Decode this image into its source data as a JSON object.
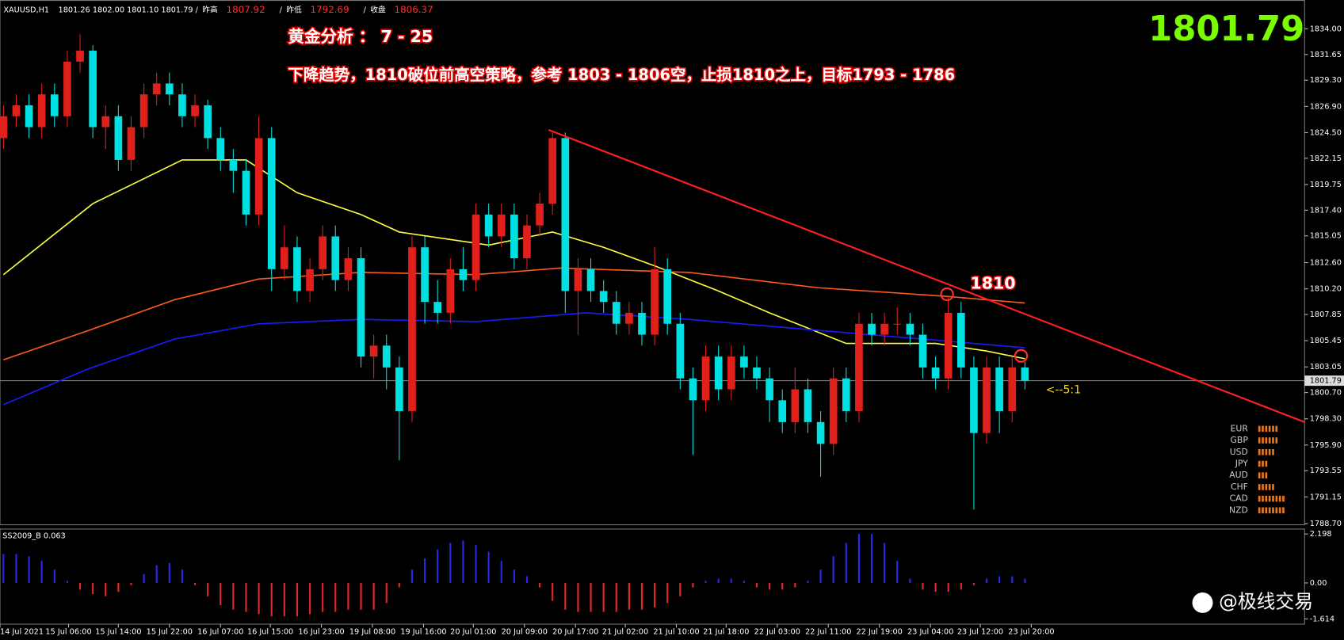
{
  "chart_data": {
    "type": "candlestick",
    "symbol": "XAUUSD,H1",
    "ohlc_text": "1801.26 1802.00 1801.10 1801.79",
    "stats": [
      {
        "label": "昨高",
        "value": 1807.92
      },
      {
        "label": "昨低",
        "value": 1792.69
      },
      {
        "label": "收盘",
        "value": 1806.37
      }
    ],
    "last_price": 1801.79,
    "annotations": [
      "黄金分析 ：  7 - 25",
      "下降趋势，1810破位前高空策略，参考 1803 - 1806空，止损1810之上，目标1793 - 1786"
    ],
    "level_label": "1810",
    "ratio_label": "<--5:1",
    "up_color": "#e0201a",
    "down_color": "#00e0e0",
    "xlim": [
      -0.27,
      101.9
    ],
    "ylim": [
      1788.6,
      1836.6
    ],
    "yticks": [
      {
        "value": 1834.0,
        "label": "1834.00"
      },
      {
        "value": 1831.65,
        "label": "1831.65"
      },
      {
        "value": 1829.3,
        "label": "1829.30"
      },
      {
        "value": 1826.9,
        "label": "1826.90"
      },
      {
        "value": 1824.5,
        "label": "1824.50"
      },
      {
        "value": 1822.15,
        "label": "1822.15"
      },
      {
        "value": 1819.75,
        "label": "1819.75"
      },
      {
        "value": 1817.4,
        "label": "1817.40"
      },
      {
        "value": 1815.05,
        "label": "1815.05"
      },
      {
        "value": 1812.6,
        "label": "1812.60"
      },
      {
        "value": 1810.2,
        "label": "1810.20"
      },
      {
        "value": 1807.85,
        "label": "1807.85"
      },
      {
        "value": 1805.45,
        "label": "1805.45"
      },
      {
        "value": 1803.05,
        "label": "1803.05"
      },
      {
        "value": 1800.7,
        "label": "1800.70"
      },
      {
        "value": 1798.3,
        "label": "1798.30"
      },
      {
        "value": 1795.9,
        "label": "1795.90"
      },
      {
        "value": 1793.55,
        "label": "1793.55"
      },
      {
        "value": 1791.15,
        "label": "1791.15"
      },
      {
        "value": 1788.7,
        "label": "1788.70"
      }
    ],
    "xticks": [
      {
        "value": -0.27,
        "label": "14 Jul 2021"
      },
      {
        "value": 5.1,
        "label": "15 Jul 06:00"
      },
      {
        "value": 9,
        "label": "15 Jul 14:00"
      },
      {
        "value": 13,
        "label": "15 Jul 22:00"
      },
      {
        "value": 17,
        "label": "16 Jul 07:00"
      },
      {
        "value": 20.9,
        "label": "16 Jul 15:00"
      },
      {
        "value": 24.9,
        "label": "16 Jul 23:00"
      },
      {
        "value": 28.9,
        "label": "19 Jul 08:00"
      },
      {
        "value": 32.9,
        "label": "19 Jul 16:00"
      },
      {
        "value": 36.8,
        "label": "20 Jul 01:00"
      },
      {
        "value": 40.8,
        "label": "20 Jul 09:00"
      },
      {
        "value": 44.8,
        "label": "20 Jul 17:00"
      },
      {
        "value": 48.7,
        "label": "21 Jul 02:00"
      },
      {
        "value": 52.7,
        "label": "21 Jul 10:00"
      },
      {
        "value": 56.6,
        "label": "21 Jul 18:00"
      },
      {
        "value": 60.6,
        "label": "22 Jul 03:00"
      },
      {
        "value": 64.6,
        "label": "22 Jul 11:00"
      },
      {
        "value": 68.6,
        "label": "22 Jul 19:00"
      },
      {
        "value": 72.6,
        "label": "23 Jul 04:00"
      },
      {
        "value": 76.5,
        "label": "23 Jul 12:00"
      },
      {
        "value": 80.5,
        "label": "23 Jul 20:00"
      }
    ],
    "candles": [
      [
        1824,
        1827,
        1823,
        1826
      ],
      [
        1826,
        1828,
        1825,
        1827
      ],
      [
        1827,
        1828,
        1824,
        1825
      ],
      [
        1825,
        1829,
        1824,
        1828
      ],
      [
        1828,
        1829,
        1825,
        1826
      ],
      [
        1826,
        1832,
        1825,
        1831
      ],
      [
        1831,
        1833.5,
        1830,
        1832
      ],
      [
        1832,
        1832.5,
        1824,
        1825
      ],
      [
        1825,
        1827,
        1823,
        1826
      ],
      [
        1826,
        1827,
        1821,
        1822
      ],
      [
        1822,
        1826,
        1821,
        1825
      ],
      [
        1825,
        1829,
        1824,
        1828
      ],
      [
        1828,
        1830,
        1827,
        1829
      ],
      [
        1829,
        1830,
        1827,
        1828
      ],
      [
        1828,
        1829,
        1825,
        1826
      ],
      [
        1826,
        1828,
        1825,
        1827
      ],
      [
        1827,
        1827.5,
        1823,
        1824
      ],
      [
        1824,
        1825,
        1821,
        1822
      ],
      [
        1822,
        1823,
        1819,
        1821
      ],
      [
        1821,
        1822,
        1816,
        1817
      ],
      [
        1817,
        1826,
        1816,
        1824
      ],
      [
        1824,
        1825,
        1810,
        1812
      ],
      [
        1812,
        1816,
        1811,
        1814
      ],
      [
        1814,
        1815,
        1809,
        1810
      ],
      [
        1810,
        1813,
        1809,
        1812
      ],
      [
        1812,
        1816,
        1811,
        1815
      ],
      [
        1815,
        1816,
        1810,
        1811
      ],
      [
        1811,
        1814,
        1810,
        1813
      ],
      [
        1813,
        1814,
        1803,
        1804
      ],
      [
        1804,
        1806,
        1802,
        1805
      ],
      [
        1805,
        1806,
        1801,
        1803
      ],
      [
        1803,
        1804,
        1794.5,
        1799
      ],
      [
        1799,
        1815,
        1798,
        1814
      ],
      [
        1814,
        1815,
        1807,
        1809
      ],
      [
        1809,
        1811,
        1807,
        1808
      ],
      [
        1808,
        1813,
        1807,
        1812
      ],
      [
        1812,
        1814,
        1810,
        1811
      ],
      [
        1811,
        1818,
        1810,
        1817
      ],
      [
        1817,
        1818,
        1814,
        1815
      ],
      [
        1815,
        1818,
        1814,
        1817
      ],
      [
        1817,
        1818,
        1812,
        1813
      ],
      [
        1813,
        1817,
        1812,
        1816
      ],
      [
        1816,
        1819,
        1815,
        1818
      ],
      [
        1818,
        1824.5,
        1817,
        1824
      ],
      [
        1824,
        1824.5,
        1808,
        1810
      ],
      [
        1810,
        1813,
        1806,
        1812
      ],
      [
        1812,
        1813,
        1809,
        1810
      ],
      [
        1810,
        1811,
        1808,
        1809
      ],
      [
        1809,
        1810,
        1806,
        1807
      ],
      [
        1807,
        1809,
        1806,
        1808
      ],
      [
        1808,
        1809,
        1805,
        1806
      ],
      [
        1806,
        1814,
        1805,
        1812
      ],
      [
        1812,
        1813,
        1806,
        1807
      ],
      [
        1807,
        1808,
        1801,
        1802
      ],
      [
        1802,
        1803,
        1795,
        1800
      ],
      [
        1800,
        1805,
        1799,
        1804
      ],
      [
        1804,
        1805,
        1800,
        1801
      ],
      [
        1801,
        1805,
        1800,
        1804
      ],
      [
        1804,
        1805,
        1802,
        1803
      ],
      [
        1803,
        1804,
        1801,
        1802
      ],
      [
        1802,
        1803,
        1798,
        1800
      ],
      [
        1800,
        1801,
        1797,
        1798
      ],
      [
        1798,
        1803,
        1797,
        1801
      ],
      [
        1801,
        1802,
        1797,
        1798
      ],
      [
        1798,
        1799,
        1793,
        1796
      ],
      [
        1796,
        1803,
        1795,
        1802
      ],
      [
        1802,
        1803,
        1798,
        1799
      ],
      [
        1799,
        1808,
        1798,
        1807
      ],
      [
        1807,
        1808,
        1805,
        1806
      ],
      [
        1806,
        1808,
        1805,
        1807
      ],
      [
        1807,
        1808.5,
        1806,
        1807
      ],
      [
        1807,
        1808,
        1805,
        1806
      ],
      [
        1806,
        1807,
        1802,
        1803
      ],
      [
        1803,
        1804,
        1801,
        1802
      ],
      [
        1802,
        1809.5,
        1801,
        1808
      ],
      [
        1808,
        1809,
        1802,
        1803
      ],
      [
        1803,
        1804,
        1790,
        1797
      ],
      [
        1797,
        1804,
        1796,
        1803
      ],
      [
        1803,
        1804,
        1797,
        1799
      ],
      [
        1799,
        1804,
        1798,
        1803
      ],
      [
        1803,
        1803.5,
        1801,
        1801.79
      ]
    ],
    "moving_averages": [
      {
        "color": "#ffff40",
        "x": [
          0,
          7,
          14,
          19,
          23,
          28,
          31,
          38,
          43,
          47,
          51,
          56,
          60,
          66,
          73,
          77,
          80
        ],
        "values": [
          1811.5,
          1818,
          1822,
          1822,
          1819,
          1817,
          1815.4,
          1814.2,
          1815.4,
          1814,
          1812.3,
          1810,
          1808,
          1805.2,
          1805.2,
          1804.5,
          1803.8
        ]
      },
      {
        "color": "#ff5a1e",
        "x": [
          0,
          6.7,
          13.4,
          20,
          28,
          37,
          43.6,
          53.7,
          63.8,
          74,
          80
        ],
        "values": [
          1803.7,
          1806.4,
          1809.2,
          1811.1,
          1811.7,
          1811.5,
          1812.1,
          1811.7,
          1810.3,
          1809.5,
          1808.9
        ]
      },
      {
        "color": "#1a1aff",
        "x": [
          0,
          6.7,
          13.4,
          20,
          28,
          37,
          45.6,
          53.7,
          63.8,
          74,
          80
        ],
        "values": [
          1799.6,
          1802.9,
          1805.6,
          1807,
          1807.4,
          1807.2,
          1808,
          1807.4,
          1806.4,
          1805.4,
          1804.8
        ]
      }
    ],
    "trend_line": {
      "color": "#ff2020",
      "x": [
        42.7,
        101.9
      ],
      "values": [
        1824.75,
        1798.0
      ]
    },
    "circles": {
      "color": "#ff3030",
      "x": [
        73.9,
        79.7
      ],
      "values": [
        1809.7,
        1804.06
      ]
    },
    "strength": {
      "currencies": [
        "EUR",
        "GBP",
        "USD",
        "JPY",
        "AUD",
        "CHF",
        "CAD",
        "NZD"
      ],
      "values": [
        6,
        6,
        5,
        3,
        3,
        5,
        8,
        8
      ],
      "color": "#e8781e"
    },
    "indicator": {
      "title": "SS2009_B 0.063",
      "pos_color": "#2828e6",
      "neg_color": "#e02828",
      "ylim": [
        -1.85,
        2.42
      ],
      "yticks": [
        2.198,
        {
          "value": 0,
          "label": "0.00"
        },
        -1.614
      ],
      "values": [
        1.3,
        1.3,
        1.2,
        1.0,
        0.6,
        0.1,
        -0.3,
        -0.5,
        -0.6,
        -0.4,
        -0.1,
        0.4,
        0.8,
        0.9,
        0.6,
        -0.1,
        -0.6,
        -1.0,
        -1.2,
        -1.3,
        -1.4,
        -1.5,
        -1.5,
        -1.5,
        -1.4,
        -1.3,
        -1.3,
        -1.2,
        -1.2,
        -1.2,
        -0.9,
        -0.2,
        0.6,
        1.1,
        1.5,
        1.8,
        1.9,
        1.7,
        1.4,
        1.0,
        0.6,
        0.3,
        -0.2,
        -0.8,
        -1.2,
        -1.3,
        -1.3,
        -1.3,
        -1.3,
        -1.2,
        -1.2,
        -1.1,
        -0.9,
        -0.6,
        -0.2,
        0.1,
        0.2,
        0.2,
        0.1,
        -0.2,
        -0.3,
        -0.3,
        -0.2,
        0.1,
        0.6,
        1.2,
        1.8,
        2.2,
        2.2,
        1.8,
        1.0,
        0.2,
        -0.3,
        -0.4,
        -0.4,
        -0.3,
        -0.1,
        0.2,
        0.3,
        0.3,
        0.2
      ]
    },
    "watermark": "@极线交易"
  }
}
